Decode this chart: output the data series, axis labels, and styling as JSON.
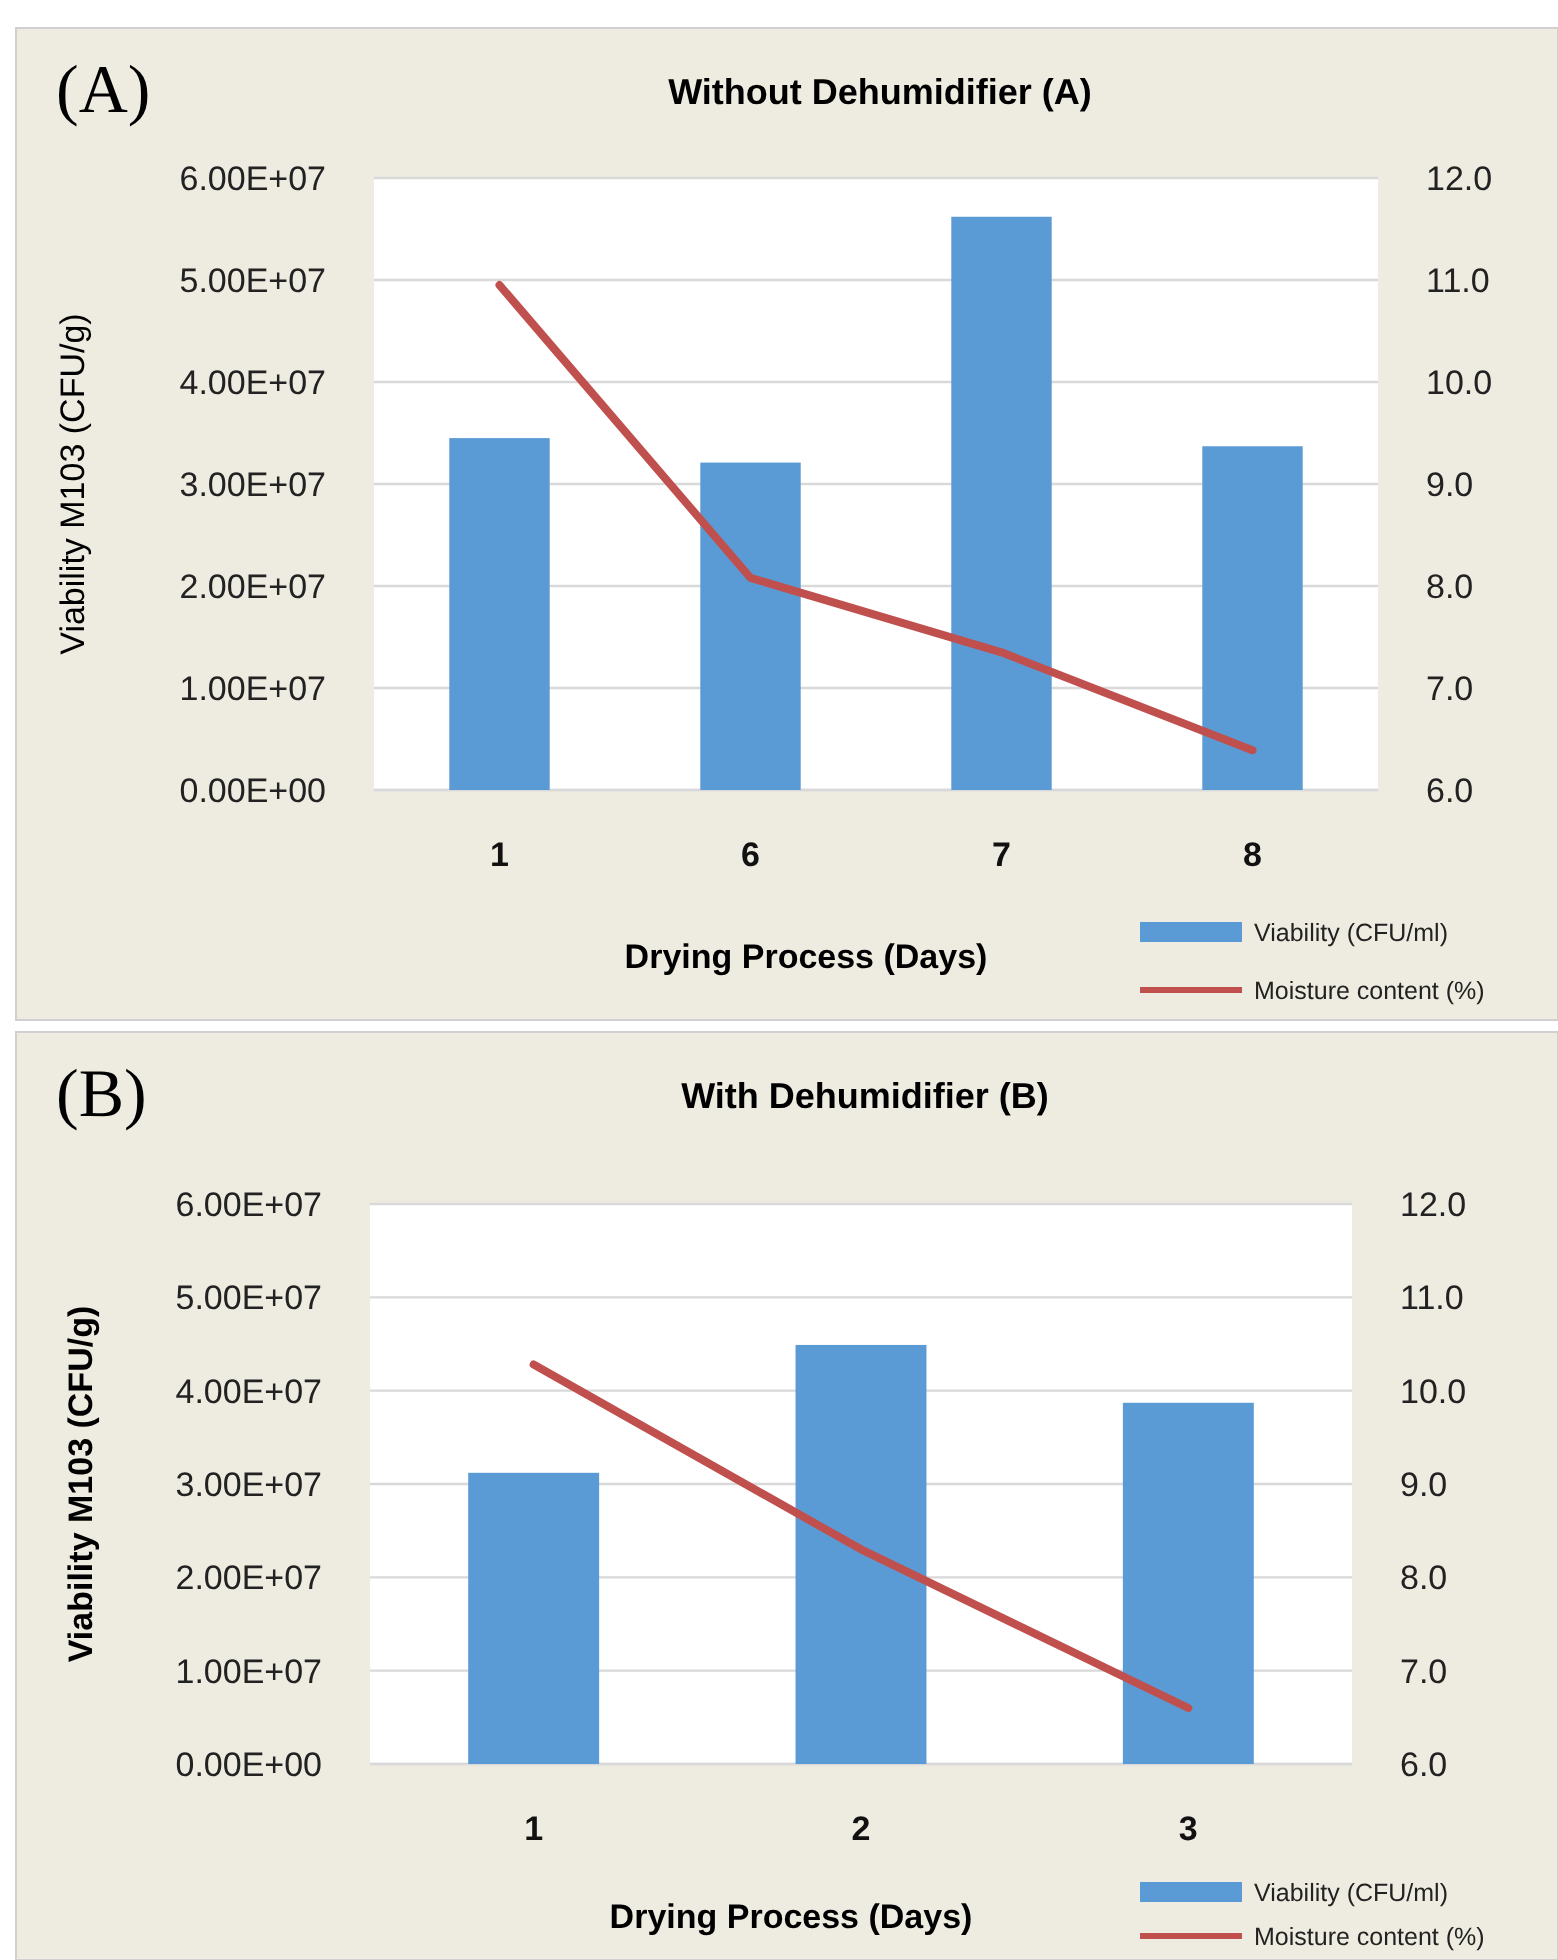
{
  "chart_data": [
    {
      "type": "bar",
      "title": "Without Dehumidifier (A)",
      "xlabel": "Drying Process (Days)",
      "ylabel": "Viability M103 (CFU/g)",
      "categories": [
        "1",
        "6",
        "7",
        "8"
      ],
      "series": [
        {
          "name": "Viability (CFU/ml)",
          "color": "#5b9bd5",
          "values": [
            34500000,
            32100000,
            56200000,
            33700000
          ]
        },
        {
          "name": "Moisture content (%)",
          "type": "line",
          "axis": "y2",
          "color": "#c0504d",
          "values": [
            10.95,
            8.08,
            7.35,
            6.39
          ]
        }
      ],
      "ylim": [
        0,
        60000000
      ],
      "yticks": [
        {
          "value": 0,
          "label": "0.00E+00"
        },
        {
          "value": 10000000,
          "label": "1.00E+07"
        },
        {
          "value": 20000000,
          "label": "2.00E+07"
        },
        {
          "value": 30000000,
          "label": "3.00E+07"
        },
        {
          "value": 40000000,
          "label": "4.00E+07"
        },
        {
          "value": 50000000,
          "label": "5.00E+07"
        },
        {
          "value": 60000000,
          "label": "6.00E+07"
        }
      ],
      "y2lim": [
        6,
        12
      ],
      "y2ticks": [
        {
          "value": 6,
          "label": "6.0"
        },
        {
          "value": 7,
          "label": "7.0"
        },
        {
          "value": 8,
          "label": "8.0"
        },
        {
          "value": 9,
          "label": "9.0"
        },
        {
          "value": 10,
          "label": "10.0"
        },
        {
          "value": 11,
          "label": "11.0"
        },
        {
          "value": 12,
          "label": "12.0"
        }
      ],
      "grid": "y",
      "legend": "bottom right",
      "annotations": [
        "(A)"
      ]
    },
    {
      "type": "bar",
      "title": "With Dehumidifier (B)",
      "xlabel": "Drying Process (Days)",
      "ylabel": "Viability M103 (CFU/g)",
      "categories": [
        "1",
        "2",
        "3"
      ],
      "series": [
        {
          "name": "Viability (CFU/ml)",
          "color": "#5b9bd5",
          "values": [
            31200000,
            44900000,
            38700000
          ]
        },
        {
          "name": "Moisture content (%)",
          "type": "line",
          "axis": "y2",
          "color": "#c0504d",
          "values": [
            10.28,
            8.3,
            6.6
          ]
        }
      ],
      "ylim": [
        0,
        60000000
      ],
      "yticks": [
        {
          "value": 0,
          "label": "0.00E+00"
        },
        {
          "value": 10000000,
          "label": "1.00E+07"
        },
        {
          "value": 20000000,
          "label": "2.00E+07"
        },
        {
          "value": 30000000,
          "label": "3.00E+07"
        },
        {
          "value": 40000000,
          "label": "4.00E+07"
        },
        {
          "value": 50000000,
          "label": "5.00E+07"
        },
        {
          "value": 60000000,
          "label": "6.00E+07"
        }
      ],
      "y2lim": [
        6,
        12
      ],
      "y2ticks": [
        {
          "value": 6,
          "label": "6.0"
        },
        {
          "value": 7,
          "label": "7.0"
        },
        {
          "value": 8,
          "label": "8.0"
        },
        {
          "value": 9,
          "label": "9.0"
        },
        {
          "value": 10,
          "label": "10.0"
        },
        {
          "value": 11,
          "label": "11.0"
        },
        {
          "value": 12,
          "label": "12.0"
        }
      ],
      "grid": "y",
      "legend": "bottom right",
      "annotations": [
        "(B)"
      ]
    }
  ]
}
